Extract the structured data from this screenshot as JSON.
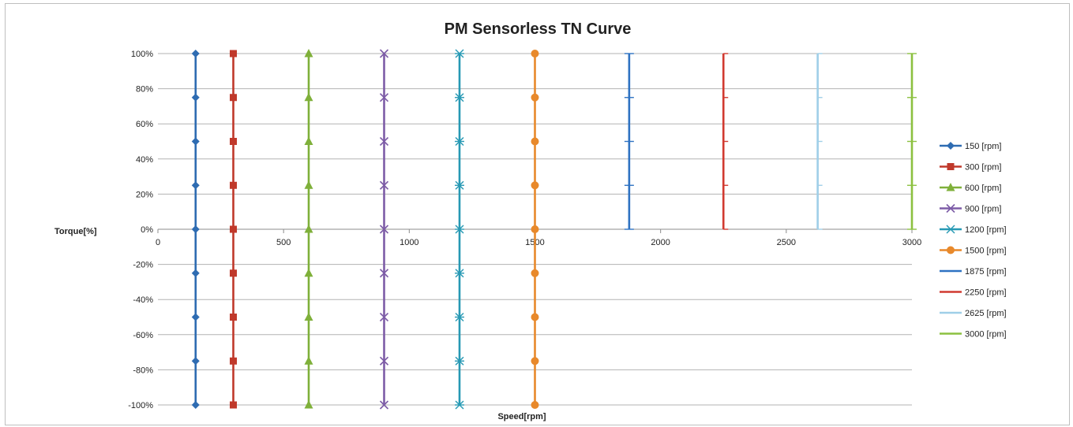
{
  "chart_data": {
    "type": "line",
    "title": "PM Sensorless TN Curve",
    "xlabel": "Speed[rpm]",
    "ylabel": "Torque[%]",
    "xlim": [
      0,
      3000
    ],
    "ylim": [
      -100,
      100
    ],
    "x_ticks": [
      "0",
      "500",
      "1000",
      "1500",
      "2000",
      "2500",
      "3000"
    ],
    "y_ticks": [
      "100%",
      "80%",
      "60%",
      "40%",
      "20%",
      "0%",
      "-20%",
      "-40%",
      "-60%",
      "-80%",
      "-100%"
    ],
    "grid": "horizontal",
    "legend_position": "right",
    "series": [
      {
        "name": "150 [rpm]",
        "color": "#2e6cb2",
        "marker": "diamond",
        "x": [
          150,
          150,
          150,
          150,
          150,
          150,
          150,
          150,
          150
        ],
        "y": [
          100,
          75,
          50,
          25,
          0,
          -25,
          -50,
          -75,
          -100
        ]
      },
      {
        "name": "300 [rpm]",
        "color": "#c0392b",
        "marker": "square",
        "x": [
          300,
          300,
          300,
          300,
          300,
          300,
          300,
          300,
          300
        ],
        "y": [
          100,
          75,
          50,
          25,
          0,
          -25,
          -50,
          -75,
          -100
        ]
      },
      {
        "name": "600 [rpm]",
        "color": "#7fb03a",
        "marker": "triangle",
        "x": [
          600,
          600,
          600,
          600,
          600,
          600,
          600,
          600,
          600
        ],
        "y": [
          100,
          75,
          50,
          25,
          0,
          -25,
          -50,
          -75,
          -100
        ]
      },
      {
        "name": "900 [rpm]",
        "color": "#7d5ca7",
        "marker": "x",
        "x": [
          900,
          900,
          900,
          900,
          900,
          900,
          900,
          900,
          900
        ],
        "y": [
          100,
          75,
          50,
          25,
          0,
          -25,
          -50,
          -75,
          -100
        ]
      },
      {
        "name": "1200 [rpm]",
        "color": "#2799b4",
        "marker": "star",
        "x": [
          1200,
          1200,
          1200,
          1200,
          1200,
          1200,
          1200,
          1200,
          1200
        ],
        "y": [
          100,
          75,
          50,
          25,
          0,
          -25,
          -50,
          -75,
          -100
        ]
      },
      {
        "name": "1500 [rpm]",
        "color": "#e8892b",
        "marker": "circle",
        "x": [
          1500,
          1500,
          1500,
          1500,
          1500,
          1500,
          1500,
          1500,
          1500
        ],
        "y": [
          100,
          75,
          50,
          25,
          0,
          -25,
          -50,
          -75,
          -100
        ]
      },
      {
        "name": "1875 [rpm]",
        "color": "#2e72c2",
        "marker": "plus",
        "x": [
          1875,
          1875,
          1875,
          1875,
          1875
        ],
        "y": [
          100,
          75,
          50,
          25,
          0
        ]
      },
      {
        "name": "2250 [rpm]",
        "color": "#d13a30",
        "marker": "dash",
        "x": [
          2250,
          2250,
          2250,
          2250,
          2250
        ],
        "y": [
          100,
          75,
          50,
          25,
          0
        ]
      },
      {
        "name": "2625 [rpm]",
        "color": "#9fcfe8",
        "marker": "dash",
        "x": [
          2625,
          2625,
          2625,
          2625,
          2625
        ],
        "y": [
          100,
          75,
          50,
          25,
          0
        ]
      },
      {
        "name": "3000 [rpm]",
        "color": "#8cc140",
        "marker": "plus",
        "x": [
          3000,
          3000,
          3000,
          3000,
          3000
        ],
        "y": [
          100,
          75,
          50,
          25,
          0
        ]
      }
    ]
  }
}
